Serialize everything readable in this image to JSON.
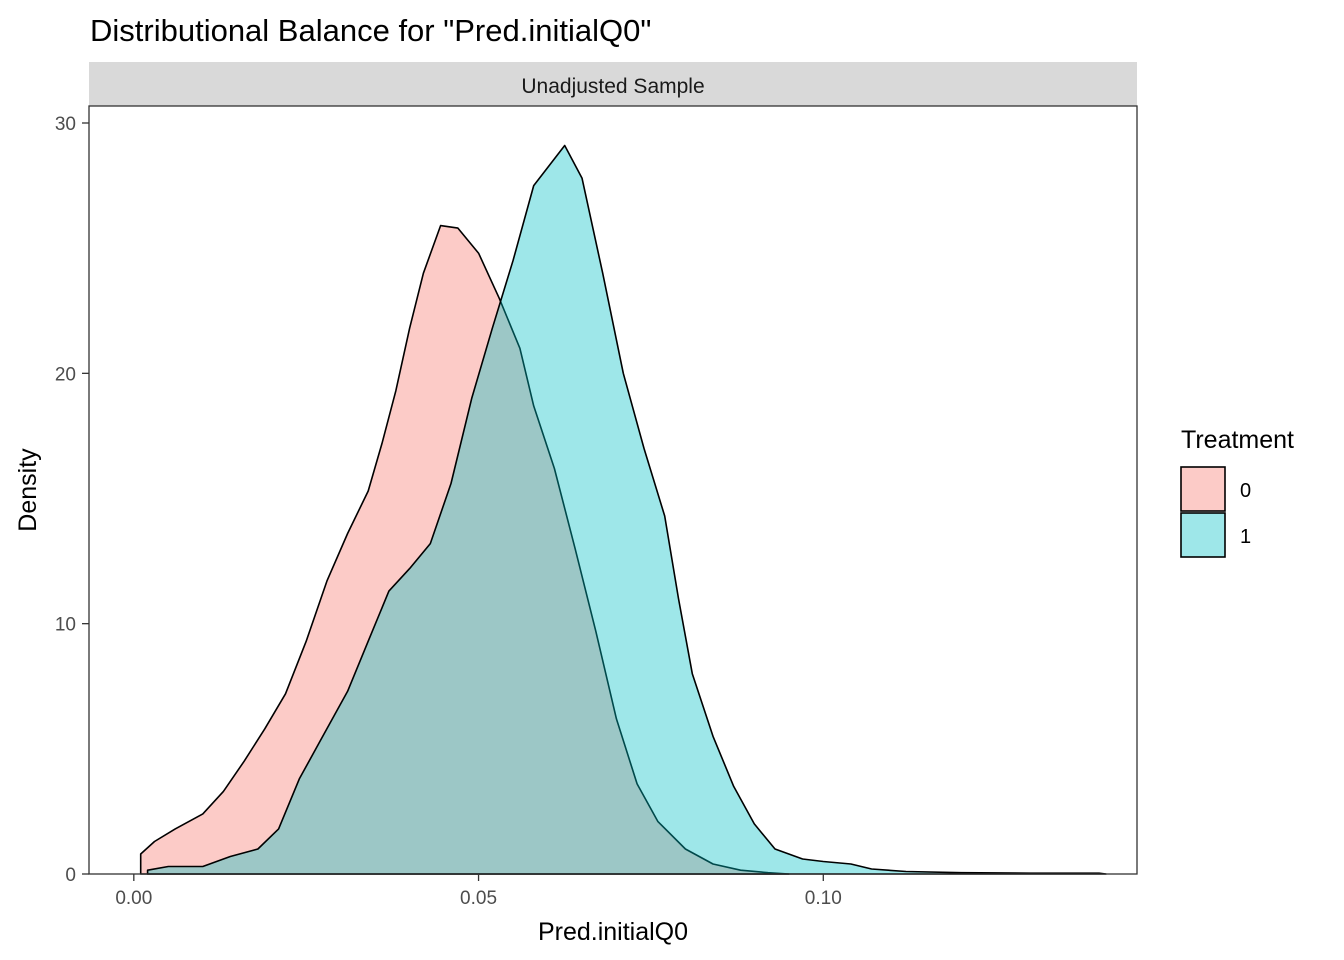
{
  "chart_data": {
    "type": "area",
    "title": "Distributional Balance for \"Pred.initialQ0\"",
    "facet_label": "Unadjusted Sample",
    "xlabel": "Pred.initialQ0",
    "ylabel": "Density",
    "xlim": [
      -0.0065,
      0.1455
    ],
    "ylim": [
      0,
      30
    ],
    "x_ticks": [
      0.0,
      0.05,
      0.1
    ],
    "x_tick_labels": [
      "0.00",
      "0.05",
      "0.10"
    ],
    "y_ticks": [
      0,
      10,
      20,
      30
    ],
    "y_tick_labels": [
      "0",
      "10",
      "20",
      "30"
    ],
    "grid": false,
    "legend": {
      "title": "Treatment",
      "position": "right"
    },
    "series": [
      {
        "name": "0",
        "color": "#F8766D",
        "points": [
          [
            0.001,
            0
          ],
          [
            0.001,
            0.8
          ],
          [
            0.003,
            1.3
          ],
          [
            0.006,
            1.8
          ],
          [
            0.01,
            2.4
          ],
          [
            0.013,
            3.3
          ],
          [
            0.016,
            4.5
          ],
          [
            0.019,
            5.8
          ],
          [
            0.022,
            7.2
          ],
          [
            0.025,
            9.3
          ],
          [
            0.028,
            11.7
          ],
          [
            0.031,
            13.6
          ],
          [
            0.034,
            15.3
          ],
          [
            0.036,
            17.2
          ],
          [
            0.038,
            19.3
          ],
          [
            0.04,
            21.8
          ],
          [
            0.042,
            24.0
          ],
          [
            0.0445,
            25.9
          ],
          [
            0.047,
            25.8
          ],
          [
            0.05,
            24.8
          ],
          [
            0.053,
            23.0
          ],
          [
            0.056,
            21.0
          ],
          [
            0.058,
            18.7
          ],
          [
            0.061,
            16.2
          ],
          [
            0.064,
            13.0
          ],
          [
            0.067,
            9.7
          ],
          [
            0.07,
            6.2
          ],
          [
            0.073,
            3.6
          ],
          [
            0.076,
            2.1
          ],
          [
            0.08,
            1.0
          ],
          [
            0.084,
            0.4
          ],
          [
            0.088,
            0.15
          ],
          [
            0.092,
            0.05
          ],
          [
            0.095,
            0
          ]
        ]
      },
      {
        "name": "1",
        "color": "#00BFC4",
        "points": [
          [
            0.002,
            0
          ],
          [
            0.002,
            0.15
          ],
          [
            0.005,
            0.3
          ],
          [
            0.01,
            0.3
          ],
          [
            0.014,
            0.7
          ],
          [
            0.018,
            1.0
          ],
          [
            0.021,
            1.8
          ],
          [
            0.024,
            3.8
          ],
          [
            0.027,
            5.3
          ],
          [
            0.031,
            7.3
          ],
          [
            0.034,
            9.3
          ],
          [
            0.037,
            11.3
          ],
          [
            0.04,
            12.2
          ],
          [
            0.043,
            13.2
          ],
          [
            0.046,
            15.6
          ],
          [
            0.049,
            19.0
          ],
          [
            0.052,
            21.8
          ],
          [
            0.055,
            24.5
          ],
          [
            0.058,
            27.5
          ],
          [
            0.0625,
            29.1
          ],
          [
            0.065,
            27.8
          ],
          [
            0.068,
            24.0
          ],
          [
            0.071,
            20.0
          ],
          [
            0.074,
            17.0
          ],
          [
            0.077,
            14.3
          ],
          [
            0.079,
            11.0
          ],
          [
            0.081,
            8.0
          ],
          [
            0.084,
            5.5
          ],
          [
            0.087,
            3.5
          ],
          [
            0.09,
            2.0
          ],
          [
            0.093,
            1.0
          ],
          [
            0.097,
            0.6
          ],
          [
            0.1,
            0.5
          ],
          [
            0.104,
            0.4
          ],
          [
            0.107,
            0.2
          ],
          [
            0.112,
            0.1
          ],
          [
            0.12,
            0.05
          ],
          [
            0.13,
            0.03
          ],
          [
            0.14,
            0.03
          ],
          [
            0.141,
            0
          ]
        ]
      }
    ]
  }
}
